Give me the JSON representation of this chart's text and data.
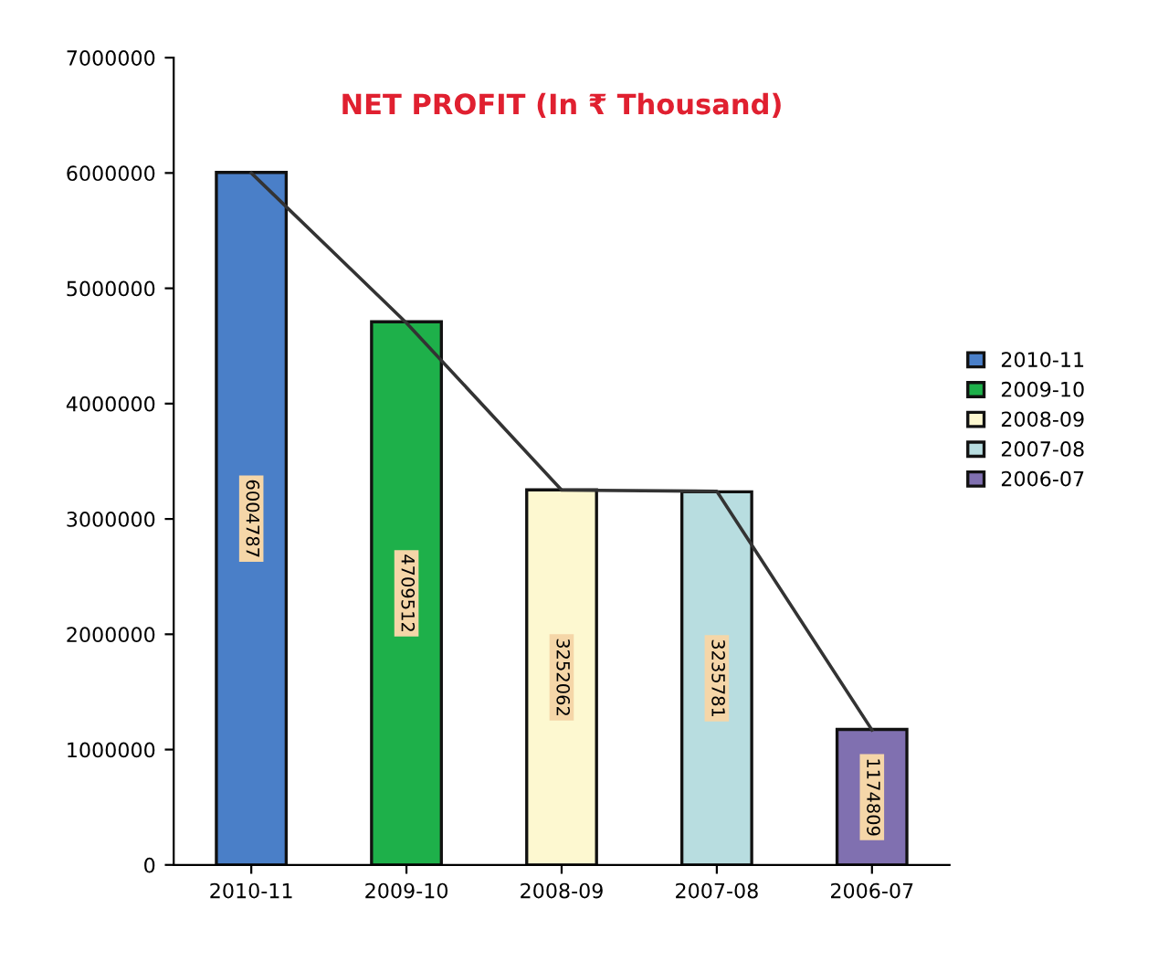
{
  "chart_data": {
    "type": "bar",
    "title": "NET PROFIT (In ₹ Thousand)",
    "categories": [
      "2010-11",
      "2009-10",
      "2008-09",
      "2007-08",
      "2006-07"
    ],
    "series": [
      {
        "name": "2010-11",
        "color": "#4a7fc8",
        "values": [
          6004787,
          null,
          null,
          null,
          null
        ],
        "value_labels": [
          "6004787",
          null,
          null,
          null,
          null
        ]
      },
      {
        "name": "2009-10",
        "color": "#1eb04a",
        "values": [
          null,
          4709512,
          null,
          null,
          null
        ],
        "value_labels": [
          null,
          "4709512",
          null,
          null,
          null
        ]
      },
      {
        "name": "2008-09",
        "color": "#fdf8d0",
        "values": [
          null,
          null,
          3252062,
          null,
          null
        ],
        "value_labels": [
          null,
          null,
          "3252062",
          null,
          null
        ]
      },
      {
        "name": "2007-08",
        "color": "#b8dde0",
        "values": [
          null,
          null,
          null,
          3235781,
          null
        ],
        "value_labels": [
          null,
          null,
          null,
          "3235781",
          null
        ]
      },
      {
        "name": "2006-07",
        "color": "#8070b0",
        "values": [
          null,
          null,
          null,
          null,
          1174809
        ],
        "value_labels": [
          null,
          null,
          null,
          null,
          "1174809"
        ]
      },
      {
        "type": "line",
        "color": "#333333",
        "values": [
          6000000,
          4700000,
          3250000,
          3240000,
          1170000
        ]
      }
    ],
    "legend": "right",
    "grid": false,
    "ylim": [
      0,
      7000000
    ],
    "yticks": [
      0,
      1000000,
      2000000,
      3000000,
      4000000,
      5000000,
      6000000,
      7000000
    ]
  }
}
